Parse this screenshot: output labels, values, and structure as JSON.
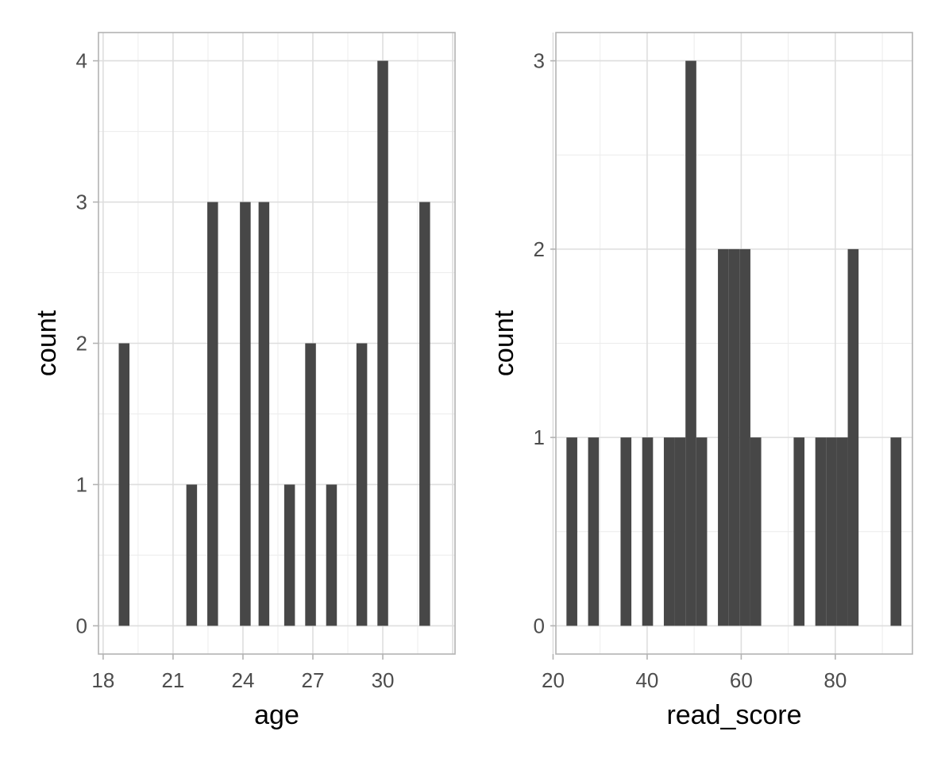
{
  "colors": {
    "bar": "#474747",
    "grid_major": "#dedede",
    "grid_minor": "#ececec",
    "panel_border": "#b3b3b3",
    "tick_text": "#4d4d4d",
    "axis_title": "#000000"
  },
  "chart_data": [
    {
      "type": "bar",
      "subtype": "histogram",
      "xlabel": "age",
      "ylabel": "count",
      "xlim": [
        17.8,
        33.1
      ],
      "ylim": [
        -0.2,
        4.2
      ],
      "xticks": [
        18,
        21,
        24,
        27,
        30
      ],
      "yticks": [
        0,
        1,
        2,
        3,
        4
      ],
      "grid": true,
      "bin_width": 0.46,
      "bins": [
        {
          "x": 18.9,
          "count": 2
        },
        {
          "x": 21.8,
          "count": 1
        },
        {
          "x": 22.7,
          "count": 3
        },
        {
          "x": 24.1,
          "count": 3
        },
        {
          "x": 24.9,
          "count": 3
        },
        {
          "x": 26.0,
          "count": 1
        },
        {
          "x": 26.9,
          "count": 2
        },
        {
          "x": 27.8,
          "count": 1
        },
        {
          "x": 29.1,
          "count": 2
        },
        {
          "x": 30.0,
          "count": 4
        },
        {
          "x": 31.8,
          "count": 3
        }
      ]
    },
    {
      "type": "bar",
      "subtype": "histogram",
      "xlabel": "read_score",
      "ylabel": "count",
      "xlim": [
        20.6,
        96.4
      ],
      "ylim": [
        -0.15,
        3.15
      ],
      "xticks": [
        20,
        40,
        60,
        80
      ],
      "yticks": [
        0,
        1,
        2,
        3
      ],
      "grid": true,
      "bin_width": 2.3,
      "bins": [
        {
          "x": 24.0,
          "count": 1
        },
        {
          "x": 28.6,
          "count": 1
        },
        {
          "x": 35.5,
          "count": 1
        },
        {
          "x": 40.1,
          "count": 1
        },
        {
          "x": 44.7,
          "count": 1
        },
        {
          "x": 47.0,
          "count": 1
        },
        {
          "x": 49.3,
          "count": 3
        },
        {
          "x": 51.6,
          "count": 1
        },
        {
          "x": 56.2,
          "count": 2
        },
        {
          "x": 58.5,
          "count": 2
        },
        {
          "x": 60.8,
          "count": 2
        },
        {
          "x": 63.1,
          "count": 1
        },
        {
          "x": 72.3,
          "count": 1
        },
        {
          "x": 76.9,
          "count": 1
        },
        {
          "x": 79.2,
          "count": 1
        },
        {
          "x": 81.5,
          "count": 1
        },
        {
          "x": 83.8,
          "count": 2
        },
        {
          "x": 92.9,
          "count": 1
        }
      ]
    }
  ]
}
